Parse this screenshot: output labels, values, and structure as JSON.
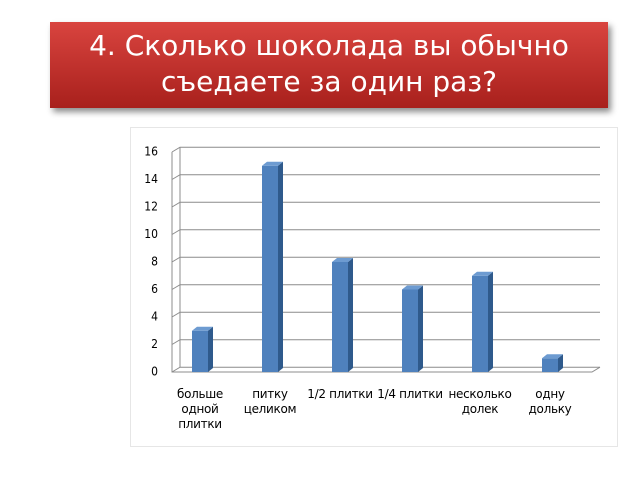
{
  "header": {
    "title_lines": [
      "4. Сколько шоколада вы обычно",
      "съедаете за один раз?"
    ]
  },
  "chart_data": {
    "type": "bar",
    "categories": [
      "больше одной плитки",
      "питку целиком",
      "1/2 плитки",
      "1/4 плитки",
      "несколько долек",
      "одну дольку"
    ],
    "values": [
      3,
      15,
      8,
      6,
      7,
      1
    ],
    "color": "#4f81bd",
    "ylim": [
      0,
      16
    ],
    "yticks": [
      0,
      2,
      4,
      6,
      8,
      10,
      12,
      14,
      16
    ],
    "grid": true
  }
}
